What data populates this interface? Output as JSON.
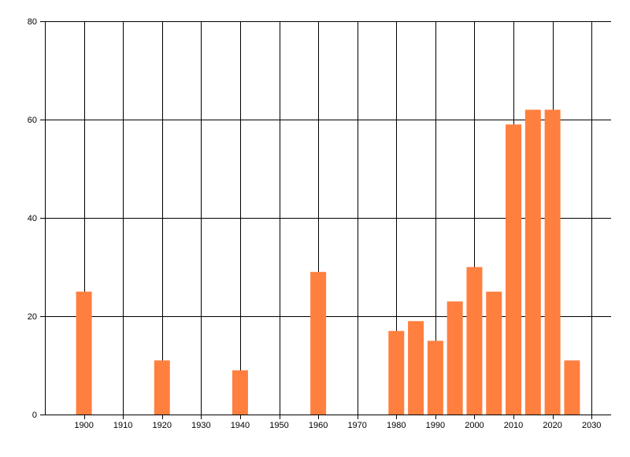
{
  "chart_data": {
    "type": "bar",
    "title": "",
    "xlabel": "",
    "ylabel": "",
    "x": [
      1900,
      1920,
      1940,
      1960,
      1980,
      1985,
      1990,
      1995,
      2000,
      2005,
      2010,
      2015,
      2020,
      2025
    ],
    "series": [
      {
        "name": "",
        "values": [
          25,
          11,
          9,
          29,
          17,
          19,
          15,
          23,
          30,
          25,
          59,
          62,
          62,
          11
        ],
        "color": "#ff7f3f"
      }
    ],
    "xlim": [
      1890,
      2035
    ],
    "ylim": [
      0,
      80
    ],
    "x_ticks": [
      "1900",
      "1910",
      "1920",
      "1930",
      "1940",
      "1950",
      "1960",
      "1970",
      "1980",
      "1990",
      "2000",
      "2010",
      "2020",
      "2030"
    ],
    "y_ticks": [
      "0",
      "20",
      "40",
      "60",
      "80"
    ],
    "grid": true,
    "legend": "none"
  }
}
